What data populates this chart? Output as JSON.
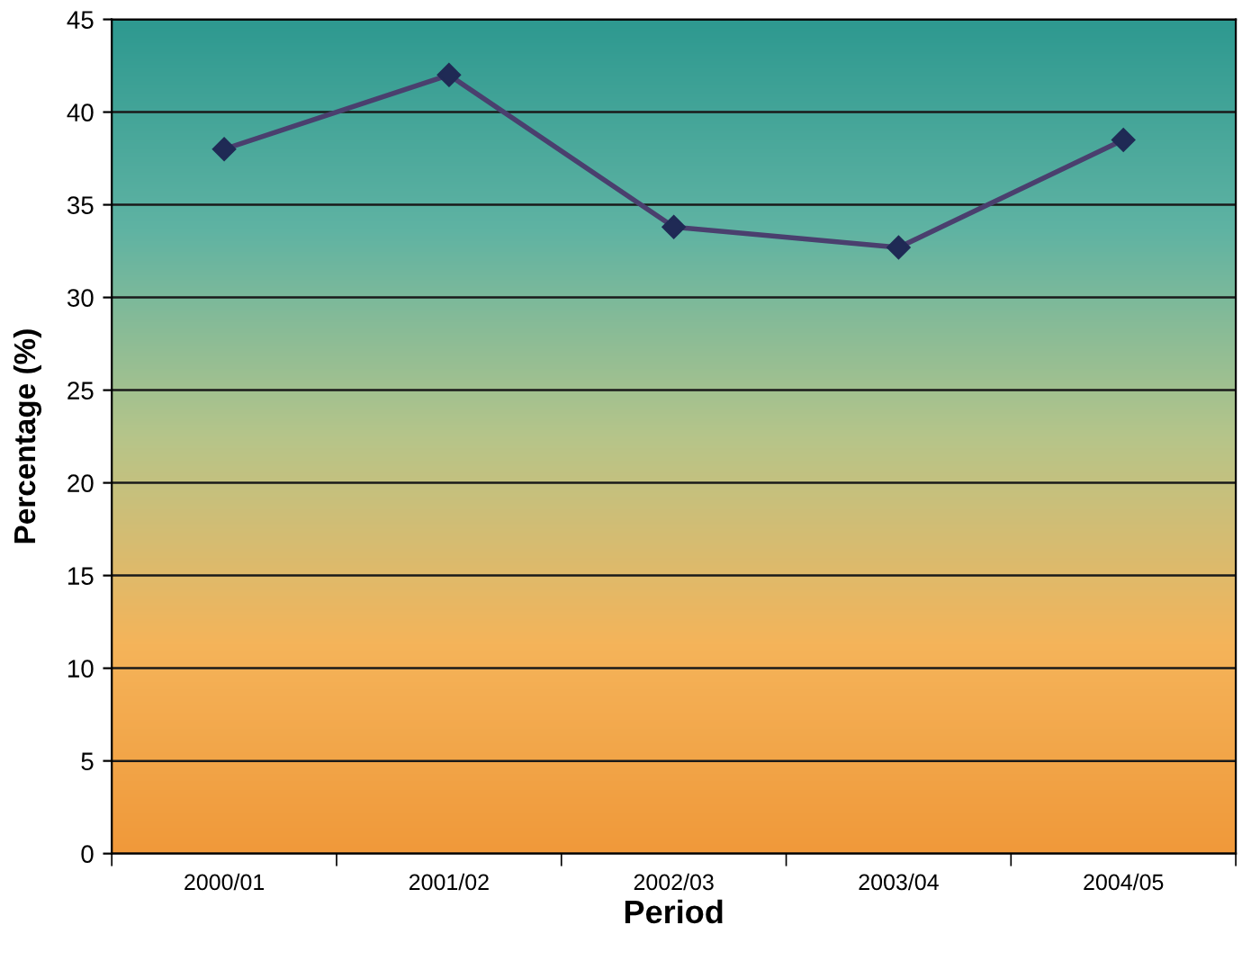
{
  "chart_data": {
    "type": "line",
    "xlabel": "Period",
    "ylabel": "Percentage (%)",
    "categories": [
      "2000/01",
      "2001/02",
      "2002/03",
      "2003/04",
      "2004/05"
    ],
    "series": [
      {
        "color": "#4a3f6e",
        "values": [
          38,
          42,
          33.8,
          32.7,
          38.5
        ]
      }
    ],
    "ylim": [
      0,
      45
    ],
    "yticks": [
      0,
      5,
      10,
      15,
      20,
      25,
      30,
      35,
      40,
      45
    ],
    "grid": "y",
    "marker": "diamond",
    "line_style": "solid"
  }
}
